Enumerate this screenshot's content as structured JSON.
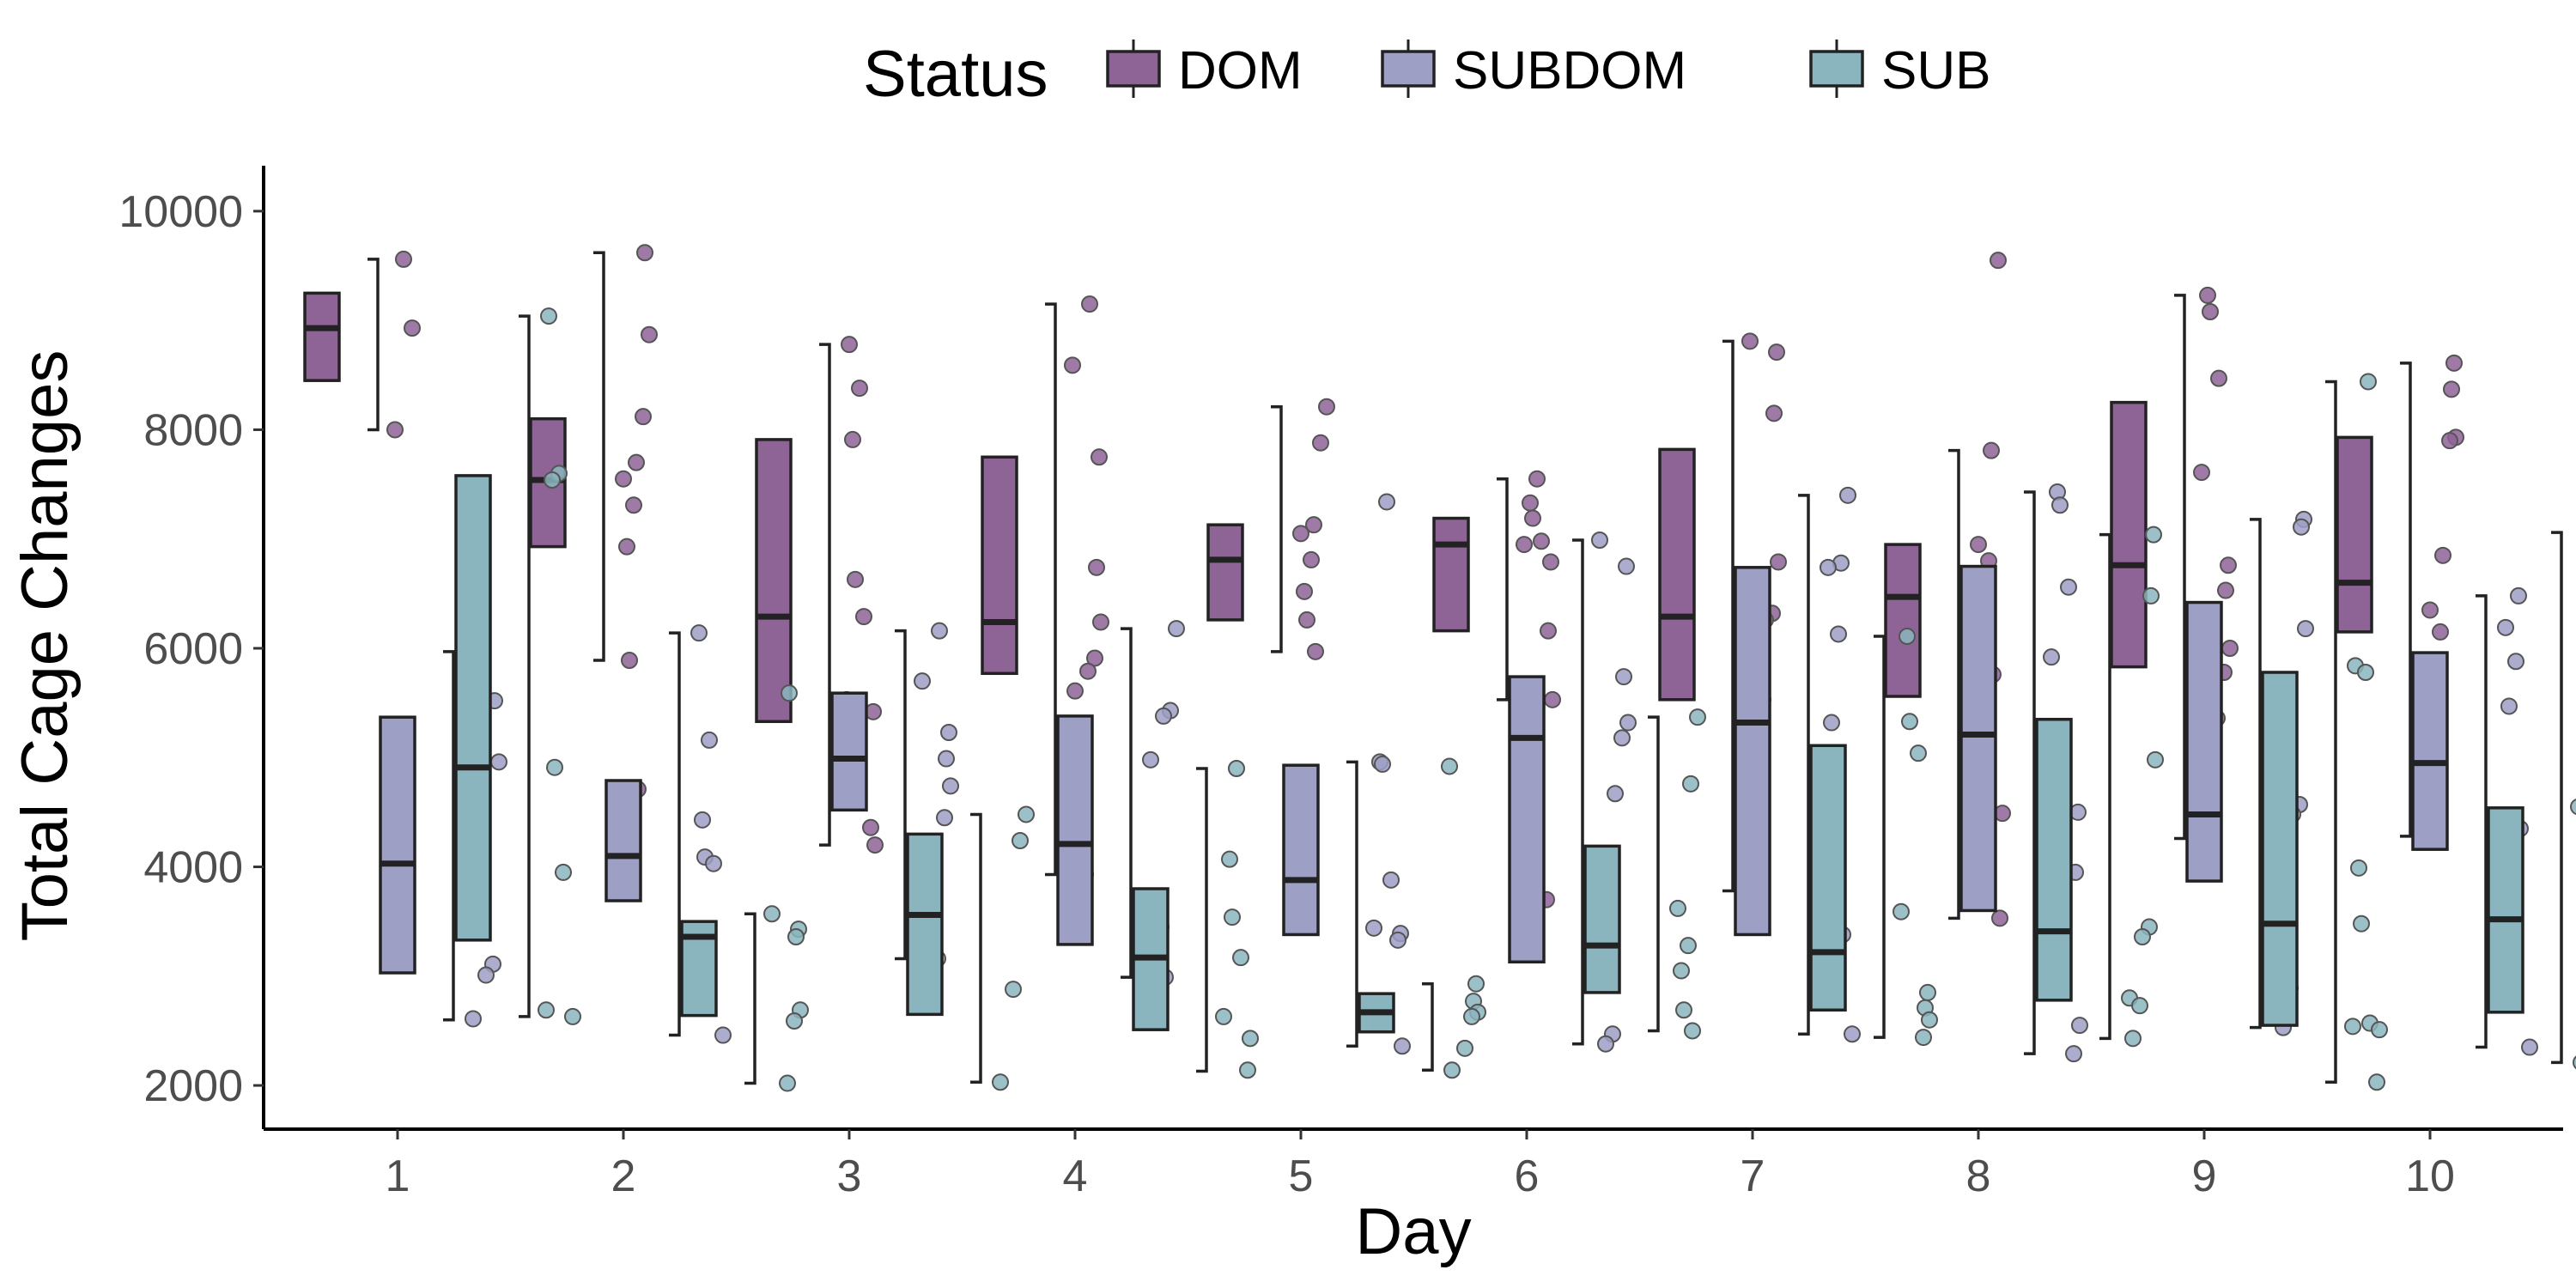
{
  "chart_data": {
    "type": "box",
    "xlabel": "Day",
    "ylabel": "Total Cage Changes",
    "ylim": [
      1600,
      10400
    ],
    "yticks": [
      2000,
      4000,
      6000,
      8000,
      10000
    ],
    "grid": false,
    "legend": {
      "title": "Status",
      "position": "top"
    },
    "categories": [
      "1",
      "2",
      "3",
      "4",
      "5",
      "6",
      "7",
      "8",
      "9",
      "10"
    ],
    "series": [
      {
        "name": "DOM",
        "color": "#8E6396",
        "boxes": [
          {
            "min": 8000,
            "q1": 8450,
            "median": 8930,
            "q3": 9250,
            "max": 9560
          },
          {
            "min": 5890,
            "q1": 6930,
            "median": 7540,
            "q3": 8100,
            "max": 9620
          },
          {
            "min": 4200,
            "q1": 5330,
            "median": 6290,
            "q3": 7910,
            "max": 8780
          },
          {
            "min": 3930,
            "q1": 5770,
            "median": 6240,
            "q3": 7750,
            "max": 9150
          },
          {
            "min": 5970,
            "q1": 6260,
            "median": 6810,
            "q3": 7130,
            "max": 8210
          },
          {
            "min": 5530,
            "q1": 6160,
            "median": 6950,
            "q3": 7190,
            "max": 7550
          },
          {
            "min": 3780,
            "q1": 5530,
            "median": 6290,
            "q3": 7820,
            "max": 8810
          },
          {
            "min": 3530,
            "q1": 5560,
            "median": 6470,
            "q3": 6950,
            "max": 7810
          },
          {
            "min": 4260,
            "q1": 5830,
            "median": 6760,
            "q3": 8250,
            "max": 9230
          },
          {
            "min": 4280,
            "q1": 6150,
            "median": 6600,
            "q3": 7930,
            "max": 8610
          }
        ],
        "points": [
          [
            9560,
            8930,
            8000
          ],
          [
            9620,
            8870,
            8120,
            7700,
            7550,
            7310,
            6930,
            5890,
            4710
          ],
          [
            8780,
            8380,
            7910,
            6630,
            6290,
            5530,
            5420,
            4360,
            4200
          ],
          [
            9150,
            8590,
            7750,
            6740,
            6240,
            5910,
            5790,
            5610,
            3930
          ],
          [
            8210,
            7880,
            7130,
            7050,
            6810,
            6520,
            6260,
            5970,
            4080
          ],
          [
            7550,
            7330,
            7190,
            6980,
            6950,
            6790,
            6160,
            5530,
            3700
          ],
          [
            8810,
            8710,
            8150,
            6790,
            6320,
            6260,
            5750,
            5530,
            5260,
            3780
          ],
          [
            9550,
            7810,
            6950,
            6800,
            6470,
            6160,
            5760,
            5560,
            4490,
            3530
          ],
          [
            9230,
            9080,
            8470,
            7610,
            6760,
            6530,
            6000,
            5780,
            5360,
            4260
          ],
          [
            8610,
            8370,
            7930,
            7900,
            6850,
            6350,
            6150,
            5420,
            4280
          ]
        ]
      },
      {
        "name": "SUBDOM",
        "color": "#9D9FC5",
        "boxes": [
          {
            "min": 2600,
            "q1": 3030,
            "median": 4030,
            "q3": 5370,
            "max": 5970
          },
          {
            "min": 2460,
            "q1": 3690,
            "median": 4100,
            "q3": 4790,
            "max": 6140
          },
          {
            "min": 3160,
            "q1": 4520,
            "median": 4990,
            "q3": 5590,
            "max": 6160
          },
          {
            "min": 2990,
            "q1": 3290,
            "median": 4210,
            "q3": 5380,
            "max": 6180
          },
          {
            "min": 2360,
            "q1": 3380,
            "median": 3880,
            "q3": 4930,
            "max": 4960
          },
          {
            "min": 2380,
            "q1": 3130,
            "median": 5180,
            "q3": 5740,
            "max": 6990
          },
          {
            "min": 2470,
            "q1": 3380,
            "median": 5320,
            "q3": 6740,
            "max": 7400
          },
          {
            "min": 2290,
            "q1": 3600,
            "median": 5210,
            "q3": 6750,
            "max": 7430
          },
          {
            "min": 2530,
            "q1": 3870,
            "median": 4480,
            "q3": 6420,
            "max": 7180
          },
          {
            "min": 2350,
            "q1": 4160,
            "median": 4950,
            "q3": 5960,
            "max": 6480
          }
        ],
        "points": [
          [
            5520,
            4960,
            3110,
            3010,
            2610
          ],
          [
            6140,
            5160,
            4430,
            4090,
            4030,
            3370,
            2460
          ],
          [
            6160,
            5700,
            5230,
            4990,
            4740,
            4450,
            3160
          ],
          [
            6180,
            5430,
            5380,
            4980,
            3450,
            3290,
            3270,
            2990
          ],
          [
            7340,
            4960,
            4940,
            3880,
            3440,
            3390,
            3330,
            2360
          ],
          [
            6990,
            6750,
            5740,
            5320,
            5180,
            4670,
            3130,
            2470,
            2380
          ],
          [
            7400,
            6780,
            6740,
            6130,
            5320,
            4520,
            3380,
            3150,
            2470
          ],
          [
            7430,
            7310,
            6560,
            5920,
            4500,
            3950,
            2550,
            2290
          ],
          [
            7180,
            7110,
            6180,
            4570,
            4480,
            4380,
            2890,
            2530
          ],
          [
            6480,
            6190,
            5880,
            5470,
            4450,
            4350,
            3660,
            2350
          ]
        ]
      },
      {
        "name": "SUB",
        "color": "#8BB5BE",
        "boxes": [
          {
            "min": 2630,
            "q1": 3330,
            "median": 4910,
            "q3": 7580,
            "max": 9040
          },
          {
            "min": 2020,
            "q1": 2640,
            "median": 3360,
            "q3": 3500,
            "max": 3570
          },
          {
            "min": 2030,
            "q1": 2650,
            "median": 3560,
            "q3": 4300,
            "max": 4480
          },
          {
            "min": 2130,
            "q1": 2510,
            "median": 3170,
            "q3": 3800,
            "max": 4900
          },
          {
            "min": 2140,
            "q1": 2490,
            "median": 2670,
            "q3": 2840,
            "max": 2930
          },
          {
            "min": 2500,
            "q1": 2850,
            "median": 3280,
            "q3": 4190,
            "max": 5370
          },
          {
            "min": 2440,
            "q1": 2690,
            "median": 3220,
            "q3": 5110,
            "max": 6110
          },
          {
            "min": 2430,
            "q1": 2780,
            "median": 3410,
            "q3": 5350,
            "max": 7040
          },
          {
            "min": 2030,
            "q1": 2550,
            "median": 3480,
            "q3": 5780,
            "max": 8440
          },
          {
            "min": 2210,
            "q1": 2670,
            "median": 3520,
            "q3": 4540,
            "max": 7060
          }
        ],
        "points": [
          [
            9040,
            7600,
            7540,
            4910,
            3950,
            2690,
            2630
          ],
          [
            5590,
            3570,
            3430,
            3360,
            2690,
            2590,
            2020
          ],
          [
            4480,
            4240,
            2880,
            2030
          ],
          [
            4900,
            4070,
            3540,
            3170,
            2630,
            2430,
            2140
          ],
          [
            4920,
            2930,
            2770,
            2670,
            2630,
            2340,
            2140
          ],
          [
            5370,
            4760,
            3620,
            3280,
            3050,
            2690,
            2500
          ],
          [
            6110,
            5330,
            5040,
            3590,
            2850,
            2710,
            2600,
            2440
          ],
          [
            7040,
            6480,
            4980,
            3450,
            3360,
            2800,
            2730,
            2430
          ],
          [
            8440,
            5840,
            5780,
            3990,
            3480,
            2570,
            2540,
            2510,
            2030
          ],
          [
            7060,
            5600,
            4550,
            3670,
            3520,
            2880,
            2660,
            2320,
            2210
          ]
        ]
      }
    ]
  }
}
